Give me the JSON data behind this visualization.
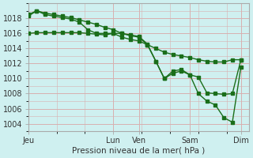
{
  "background_color": "#cff0f0",
  "grid_color": "#d8b0b0",
  "line_color": "#1a6e1a",
  "marker_color": "#1a6e1a",
  "ylabel_ticks": [
    1004,
    1006,
    1008,
    1010,
    1012,
    1014,
    1016,
    1018
  ],
  "xlabel": "Pression niveau de la mer( hPa )",
  "xtick_labels": [
    "Jeu",
    "Lun",
    "Ven",
    "Sam",
    "Dim"
  ],
  "xtick_positions": [
    0,
    10,
    13,
    19,
    25
  ],
  "xlim": [
    0,
    26
  ],
  "ylim": [
    1003,
    1020
  ],
  "line1_x": [
    0,
    1,
    2,
    3,
    4,
    5,
    6,
    7,
    8,
    9,
    10,
    11,
    12,
    13,
    14,
    15,
    16,
    17,
    18,
    19,
    20,
    21,
    22,
    23,
    24,
    25
  ],
  "line1_y": [
    1016.0,
    1016.1,
    1016.1,
    1016.1,
    1016.1,
    1016.1,
    1016.1,
    1016.0,
    1015.9,
    1015.8,
    1016.0,
    1015.5,
    1015.2,
    1015.0,
    1014.5,
    1014.0,
    1013.5,
    1013.2,
    1013.0,
    1012.8,
    1012.5,
    1012.3,
    1012.2,
    1012.2,
    1012.5,
    1012.5
  ],
  "line2_x": [
    0,
    1,
    2,
    3,
    4,
    5,
    6,
    7,
    8,
    9,
    10,
    11,
    12,
    13,
    14,
    15,
    16,
    17,
    18,
    19,
    20,
    21,
    22,
    23,
    24,
    25
  ],
  "line2_y": [
    1018.5,
    1019.0,
    1018.7,
    1018.5,
    1018.3,
    1018.1,
    1017.8,
    1017.5,
    1017.2,
    1016.8,
    1016.5,
    1016.0,
    1015.8,
    1015.6,
    1014.6,
    1012.3,
    1010.0,
    1010.7,
    1011.0,
    1010.5,
    1010.2,
    1008.1,
    1008.0,
    1007.9,
    1008.0,
    1012.5
  ],
  "line3_x": [
    0,
    1,
    2,
    3,
    4,
    5,
    6,
    7,
    8,
    9,
    10,
    11,
    12,
    13,
    14,
    15,
    16,
    17,
    18,
    19,
    20,
    21,
    22,
    23,
    24,
    25
  ],
  "line3_y": [
    1018.3,
    1019.0,
    1018.5,
    1018.3,
    1018.1,
    1017.9,
    1017.5,
    1016.5,
    1016.0,
    1016.0,
    1016.0,
    1016.0,
    1015.7,
    1015.5,
    1014.5,
    1012.3,
    1010.0,
    1011.0,
    1011.2,
    1010.5,
    1008.0,
    1007.0,
    1006.5,
    1004.8,
    1004.2,
    1011.5
  ]
}
